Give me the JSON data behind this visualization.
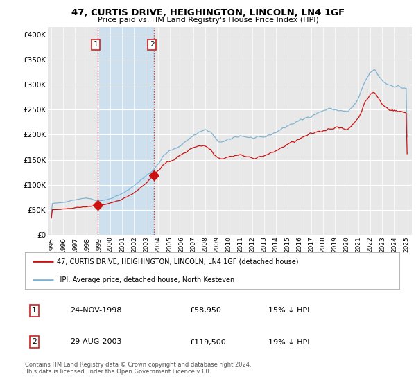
{
  "title": "47, CURTIS DRIVE, HEIGHINGTON, LINCOLN, LN4 1GF",
  "subtitle": "Price paid vs. HM Land Registry's House Price Index (HPI)",
  "ylabel_ticks": [
    "£0",
    "£50K",
    "£100K",
    "£150K",
    "£200K",
    "£250K",
    "£300K",
    "£350K",
    "£400K"
  ],
  "ytick_values": [
    0,
    50000,
    100000,
    150000,
    200000,
    250000,
    300000,
    350000,
    400000
  ],
  "ylim": [
    0,
    415000
  ],
  "xlim_start": 1994.7,
  "xlim_end": 2025.5,
  "background_color": "#ffffff",
  "plot_bg_color": "#e8e8e8",
  "grid_color": "#ffffff",
  "hpi_color": "#7fb3d3",
  "price_color": "#cc1111",
  "sale1_date": 1998.9,
  "sale1_price": 58950,
  "sale2_date": 2003.67,
  "sale2_price": 119500,
  "legend_label1": "47, CURTIS DRIVE, HEIGHINGTON, LINCOLN, LN4 1GF (detached house)",
  "legend_label2": "HPI: Average price, detached house, North Kesteven",
  "note1_num": "1",
  "note1_date": "24-NOV-1998",
  "note1_price": "£58,950",
  "note1_pct": "15% ↓ HPI",
  "note2_num": "2",
  "note2_date": "29-AUG-2003",
  "note2_price": "£119,500",
  "note2_pct": "19% ↓ HPI",
  "footer": "Contains HM Land Registry data © Crown copyright and database right 2024.\nThis data is licensed under the Open Government Licence v3.0.",
  "shade_start": 1998.9,
  "shade_end": 2003.67
}
